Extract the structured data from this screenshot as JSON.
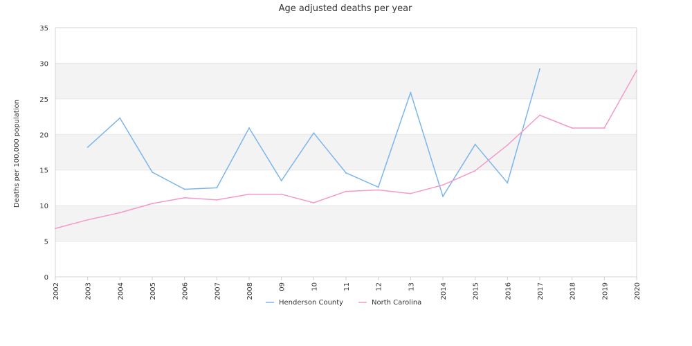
{
  "chart_data": {
    "type": "line",
    "title": "Age adjusted deaths per year",
    "xlabel": "",
    "ylabel": "Deaths per 100,000 population",
    "ylim": [
      0,
      35
    ],
    "yticks": [
      "0",
      "5",
      "10",
      "15",
      "20",
      "25",
      "30",
      "35"
    ],
    "categories": [
      "2002",
      "2003",
      "2004",
      "2005",
      "2006",
      "2007",
      "2008",
      "09",
      "10",
      "11",
      "12",
      "13",
      "2014",
      "2015",
      "2016",
      "2017",
      "2018",
      "2019",
      "2020"
    ],
    "grid": "alternating horizontal bands",
    "legend_position": "bottom",
    "series": [
      {
        "name": "Henderson County",
        "color": "#7cb5ec",
        "values": [
          null,
          18.2,
          22.3,
          14.7,
          12.3,
          12.5,
          20.9,
          13.5,
          20.2,
          14.6,
          12.6,
          25.9,
          11.3,
          18.6,
          13.2,
          29.2,
          null,
          null,
          null
        ]
      },
      {
        "name": "North Carolina",
        "color": "#f39ac8",
        "values": [
          6.8,
          8.0,
          9.0,
          10.3,
          11.1,
          10.8,
          11.6,
          11.6,
          10.4,
          12.0,
          12.2,
          11.7,
          12.9,
          14.9,
          18.5,
          22.7,
          20.9,
          20.9,
          29.0
        ]
      }
    ]
  }
}
